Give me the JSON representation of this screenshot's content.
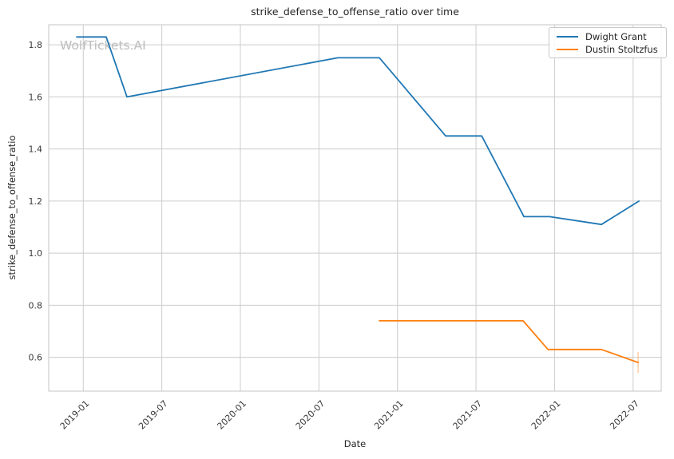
{
  "watermark": "WolfTickets.AI",
  "chart_data": {
    "type": "line",
    "title": "strike_defense_to_offense_ratio over time",
    "xlabel": "Date",
    "ylabel": "strike_defense_to_offense_ratio",
    "grid": true,
    "legend_position": "upper right",
    "xlim": [
      2018.78,
      2022.679
    ],
    "ylim": [
      0.47,
      1.877
    ],
    "x_ticks": [
      {
        "label": "2019-01",
        "value": 2019.0
      },
      {
        "label": "2019-07",
        "value": 2019.5
      },
      {
        "label": "2020-01",
        "value": 2020.0
      },
      {
        "label": "2020-07",
        "value": 2020.5
      },
      {
        "label": "2021-01",
        "value": 2021.0
      },
      {
        "label": "2021-07",
        "value": 2021.5
      },
      {
        "label": "2022-01",
        "value": 2022.0
      },
      {
        "label": "2022-07",
        "value": 2022.5
      }
    ],
    "y_ticks": [
      0.6,
      0.8,
      1.0,
      1.2,
      1.4,
      1.6,
      1.8
    ],
    "colors": {
      "grid": "#cccccc",
      "plot_border": "#c4c4c4",
      "tick_text": "#3a3a3a",
      "title_text": "#262626",
      "watermark_text": "#b6b6b6",
      "series_blue": "#1f77b4",
      "series_orange": "#ff7f0e"
    },
    "series": [
      {
        "name": "Dwight Grant",
        "color": "#1f77b4",
        "points": [
          {
            "date": "2018-12",
            "x": 2018.958,
            "y": 1.83
          },
          {
            "date": "2019-02",
            "x": 2019.146,
            "y": 1.83
          },
          {
            "date": "2019-04",
            "x": 2019.278,
            "y": 1.6
          },
          {
            "date": "2020-08",
            "x": 2020.62,
            "y": 1.75
          },
          {
            "date": "2020-11",
            "x": 2020.885,
            "y": 1.75
          },
          {
            "date": "2021-04",
            "x": 2021.307,
            "y": 1.45
          },
          {
            "date": "2021-07",
            "x": 2021.536,
            "y": 1.45
          },
          {
            "date": "2021-10",
            "x": 2021.805,
            "y": 1.14
          },
          {
            "date": "2021-12",
            "x": 2021.968,
            "y": 1.14
          },
          {
            "date": "2022-04",
            "x": 2022.298,
            "y": 1.11
          },
          {
            "date": "2022-07",
            "x": 2022.537,
            "y": 1.2
          }
        ]
      },
      {
        "name": "Dustin Stoltzfus",
        "color": "#ff7f0e",
        "points": [
          {
            "date": "2020-11",
            "x": 2020.885,
            "y": 0.74
          },
          {
            "date": "2021-10",
            "x": 2021.8,
            "y": 0.74
          },
          {
            "date": "2021-12",
            "x": 2021.958,
            "y": 0.63
          },
          {
            "date": "2022-04",
            "x": 2022.298,
            "y": 0.63
          },
          {
            "date": "2022-07",
            "x": 2022.532,
            "y": 0.58
          }
        ],
        "last_point_error": {
          "low": 0.54,
          "high": 0.62
        }
      }
    ]
  }
}
